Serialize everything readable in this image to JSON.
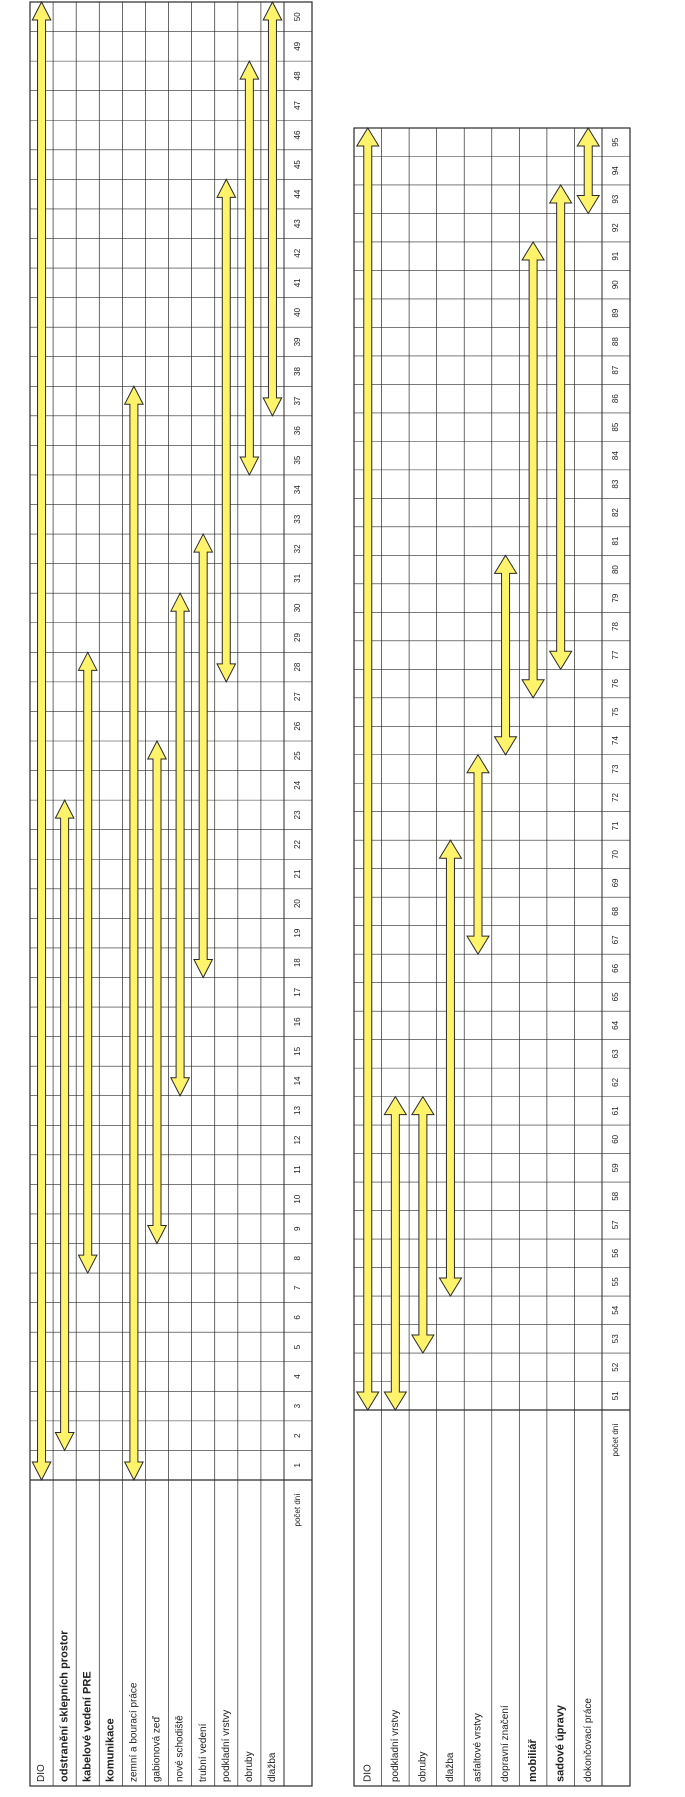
{
  "colors": {
    "grid": "#2a2a2a",
    "arrow_fill": "#fff36b",
    "arrow_stroke": "#2a2a2a",
    "text": "#222222",
    "paper": "#ffffff"
  },
  "header_label": "počet dní",
  "charts": [
    {
      "day_start": 1,
      "day_end": 50,
      "rows": [
        {
          "label": "DIO",
          "bold": false,
          "faded": false,
          "start": 1,
          "end": 50
        },
        {
          "label": "odstranění sklepních prostor",
          "bold": true,
          "faded": false,
          "start": 2,
          "end": 23
        },
        {
          "label": "kabelové vedení PRE",
          "bold": true,
          "faded": false,
          "start": 8,
          "end": 28
        },
        {
          "label": "komunikace",
          "bold": true,
          "faded": false,
          "start": null,
          "end": null
        },
        {
          "label": "zemní a bourací práce",
          "bold": false,
          "faded": false,
          "start": 1,
          "end": 37
        },
        {
          "label": "gabionová zeď",
          "bold": false,
          "faded": false,
          "start": 9,
          "end": 25
        },
        {
          "label": "nové schodiště",
          "bold": false,
          "faded": false,
          "start": 14,
          "end": 30
        },
        {
          "label": "trubní vedení",
          "bold": false,
          "faded": false,
          "start": 18,
          "end": 32
        },
        {
          "label": "podkladní vrstvy",
          "bold": false,
          "faded": true,
          "start": 28,
          "end": 44
        },
        {
          "label": "obruby",
          "bold": false,
          "faded": false,
          "start": 35,
          "end": 48
        },
        {
          "label": "dlažba",
          "bold": false,
          "faded": false,
          "start": 37,
          "end": 50
        }
      ]
    },
    {
      "day_start": 51,
      "day_end": 95,
      "rows": [
        {
          "label": "DIO",
          "bold": false,
          "faded": false,
          "start": 51,
          "end": 95
        },
        {
          "label": "podkladní vrstvy",
          "bold": false,
          "faded": false,
          "start": 51,
          "end": 61
        },
        {
          "label": "obruby",
          "bold": false,
          "faded": false,
          "start": 53,
          "end": 61
        },
        {
          "label": "dlažba",
          "bold": false,
          "faded": false,
          "start": 55,
          "end": 70
        },
        {
          "label": "asfaltové vrstvy",
          "bold": false,
          "faded": true,
          "start": 67,
          "end": 73
        },
        {
          "label": "dopravní značení",
          "bold": false,
          "faded": false,
          "start": 74,
          "end": 80
        },
        {
          "label": "mobiliář",
          "bold": true,
          "faded": false,
          "start": 76,
          "end": 91
        },
        {
          "label": "sadové úpravy",
          "bold": true,
          "faded": false,
          "start": 77,
          "end": 93
        },
        {
          "label": "dokončovací práce",
          "bold": false,
          "faded": false,
          "start": 93,
          "end": 95
        }
      ]
    }
  ]
}
